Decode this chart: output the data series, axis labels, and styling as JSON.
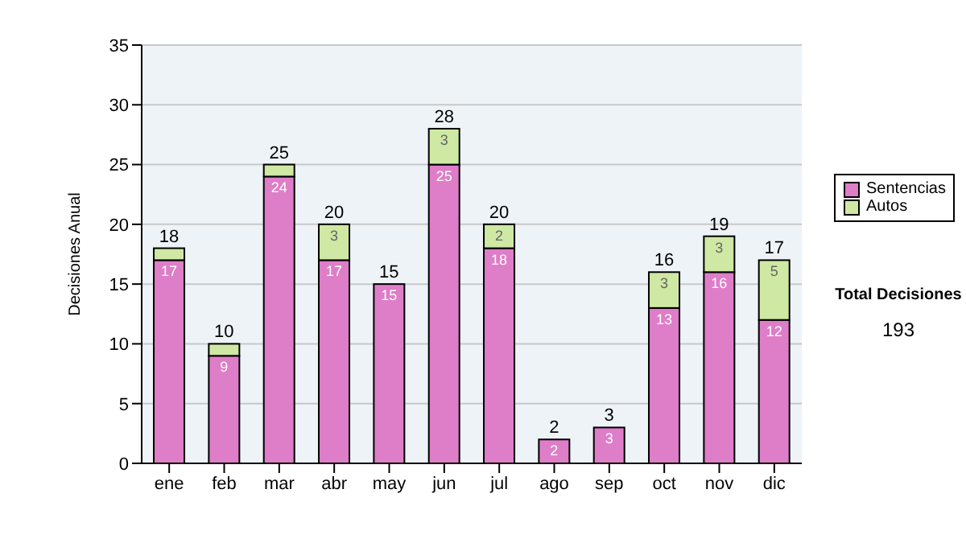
{
  "chart_data": {
    "type": "bar",
    "ylabel": "Decisiones Anual",
    "categories": [
      "ene",
      "feb",
      "mar",
      "abr",
      "may",
      "jun",
      "jul",
      "ago",
      "sep",
      "oct",
      "nov",
      "dic"
    ],
    "series": [
      {
        "name": "Sentencias",
        "color": "#de7dc8",
        "values": [
          17,
          9,
          24,
          17,
          15,
          25,
          18,
          2,
          3,
          13,
          16,
          12
        ],
        "value_labels": [
          "17",
          "9",
          "24",
          "17",
          "15",
          "25",
          "18",
          "2",
          "3",
          "13",
          "16",
          "12"
        ]
      },
      {
        "name": "Autos",
        "color": "#cfe8a4",
        "values": [
          1,
          1,
          1,
          3,
          0,
          3,
          2,
          0,
          0,
          3,
          3,
          5
        ],
        "value_labels": [
          null,
          null,
          null,
          "3",
          null,
          "3",
          "2",
          null,
          null,
          "3",
          "3",
          "5"
        ]
      }
    ],
    "stacked": true,
    "totals": [
      "18",
      "10",
      "25",
      "20",
      "15",
      "28",
      "20",
      "2",
      "3",
      "16",
      "19",
      "17"
    ],
    "ylim": [
      0,
      35
    ],
    "yticks": [
      0,
      5,
      10,
      15,
      20,
      25,
      30,
      35
    ],
    "grid": "y",
    "legend": "right",
    "annotations": [
      "Total Decisiones",
      "193"
    ]
  }
}
